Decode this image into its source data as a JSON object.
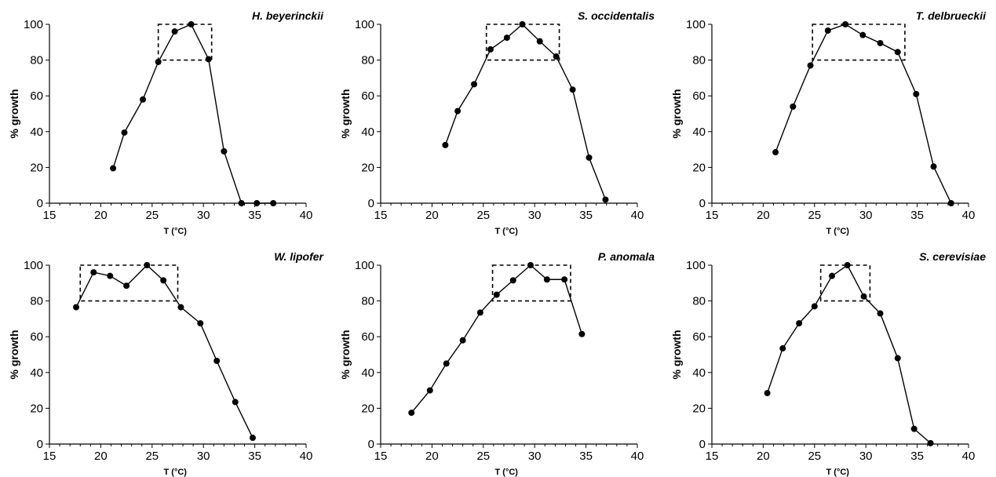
{
  "chart_data": [
    {
      "type": "line",
      "title": "H. beyerinckii",
      "xlabel": "T (°C)",
      "ylabel": "% growth",
      "xlim": [
        15,
        40
      ],
      "ylim": [
        0,
        100
      ],
      "xticks": [
        15,
        20,
        25,
        30,
        35,
        40
      ],
      "yticks": [
        0,
        20,
        40,
        60,
        80,
        100
      ],
      "grid": false,
      "series": [
        {
          "x": [
            21.2,
            22.3,
            24.1,
            25.6,
            27.2,
            28.8,
            30.5,
            32.0,
            33.7,
            35.2,
            36.8
          ],
          "y": [
            19.5,
            39.5,
            58.0,
            79.0,
            96.0,
            100.0,
            80.5,
            29.0,
            0.0,
            0.0,
            0.0
          ]
        }
      ],
      "optimum_box": {
        "x": [
          25.6,
          30.8
        ],
        "y": [
          80,
          100
        ]
      }
    },
    {
      "type": "line",
      "title": "S. occidentalis",
      "xlabel": "T (°C)",
      "ylabel": "% growth",
      "xlim": [
        15,
        40
      ],
      "ylim": [
        0,
        100
      ],
      "xticks": [
        15,
        20,
        25,
        30,
        35,
        40
      ],
      "yticks": [
        0,
        20,
        40,
        60,
        80,
        100
      ],
      "grid": false,
      "series": [
        {
          "x": [
            21.3,
            22.5,
            24.1,
            25.7,
            27.3,
            28.8,
            30.5,
            32.1,
            33.7,
            35.3,
            36.9
          ],
          "y": [
            32.5,
            51.5,
            66.5,
            86.0,
            92.5,
            100.0,
            90.5,
            82.0,
            63.5,
            25.5,
            2.0
          ]
        }
      ],
      "optimum_box": {
        "x": [
          25.3,
          32.4
        ],
        "y": [
          80,
          100
        ]
      }
    },
    {
      "type": "line",
      "title": "T. delbrueckii",
      "xlabel": "T (°C)",
      "ylabel": "% growth",
      "xlim": [
        15,
        40
      ],
      "ylim": [
        0,
        100
      ],
      "xticks": [
        15,
        20,
        25,
        30,
        35,
        40
      ],
      "yticks": [
        0,
        20,
        40,
        60,
        80,
        100
      ],
      "grid": false,
      "series": [
        {
          "x": [
            21.2,
            22.9,
            24.6,
            26.3,
            28.0,
            29.7,
            31.4,
            33.1,
            34.9,
            36.6,
            38.3
          ],
          "y": [
            28.5,
            54.0,
            77.0,
            96.5,
            100.0,
            94.0,
            89.5,
            84.5,
            61.0,
            20.5,
            0.0
          ]
        }
      ],
      "optimum_box": {
        "x": [
          24.8,
          33.8
        ],
        "y": [
          80,
          100
        ]
      }
    },
    {
      "type": "line",
      "title": "W. lipofer",
      "xlabel": "T (°C)",
      "ylabel": "% growth",
      "xlim": [
        15,
        40
      ],
      "ylim": [
        0,
        100
      ],
      "xticks": [
        15,
        20,
        25,
        30,
        35,
        40
      ],
      "yticks": [
        0,
        20,
        40,
        60,
        80,
        100
      ],
      "grid": false,
      "series": [
        {
          "x": [
            17.6,
            19.3,
            20.9,
            22.5,
            24.5,
            26.1,
            27.8,
            29.7,
            31.3,
            33.1,
            34.8
          ],
          "y": [
            76.5,
            96.0,
            94.0,
            88.5,
            100.0,
            91.5,
            76.5,
            67.5,
            46.5,
            23.5,
            3.5
          ]
        }
      ],
      "optimum_box": {
        "x": [
          18.0,
          27.5
        ],
        "y": [
          80,
          100
        ]
      }
    },
    {
      "type": "line",
      "title": "P. anomala",
      "xlabel": "T (°C)",
      "ylabel": "% growth",
      "xlim": [
        15,
        40
      ],
      "ylim": [
        0,
        100
      ],
      "xticks": [
        15,
        20,
        25,
        30,
        35,
        40
      ],
      "yticks": [
        0,
        20,
        40,
        60,
        80,
        100
      ],
      "grid": false,
      "series": [
        {
          "x": [
            18.0,
            19.8,
            21.4,
            23.0,
            24.7,
            26.3,
            27.9,
            29.6,
            31.2,
            32.9,
            34.6
          ],
          "y": [
            17.5,
            30.0,
            45.0,
            58.0,
            73.5,
            83.5,
            91.5,
            100.0,
            92.0,
            92.0,
            61.5
          ]
        }
      ],
      "optimum_box": {
        "x": [
          25.9,
          33.5
        ],
        "y": [
          80,
          100
        ]
      }
    },
    {
      "type": "line",
      "title": "S. cerevisiae",
      "xlabel": "T (°C)",
      "ylabel": "% growth",
      "xlim": [
        15,
        40
      ],
      "ylim": [
        0,
        100
      ],
      "xticks": [
        15,
        20,
        25,
        30,
        35,
        40
      ],
      "yticks": [
        0,
        20,
        40,
        60,
        80,
        100
      ],
      "grid": false,
      "series": [
        {
          "x": [
            20.4,
            21.9,
            23.5,
            25.0,
            26.7,
            28.2,
            29.8,
            31.4,
            33.1,
            34.7,
            36.3
          ],
          "y": [
            28.5,
            53.5,
            67.5,
            77.0,
            94.0,
            100.0,
            82.5,
            73.0,
            48.0,
            8.5,
            0.5
          ]
        }
      ],
      "optimum_box": {
        "x": [
          25.6,
          30.4
        ],
        "y": [
          80,
          100
        ]
      }
    }
  ]
}
